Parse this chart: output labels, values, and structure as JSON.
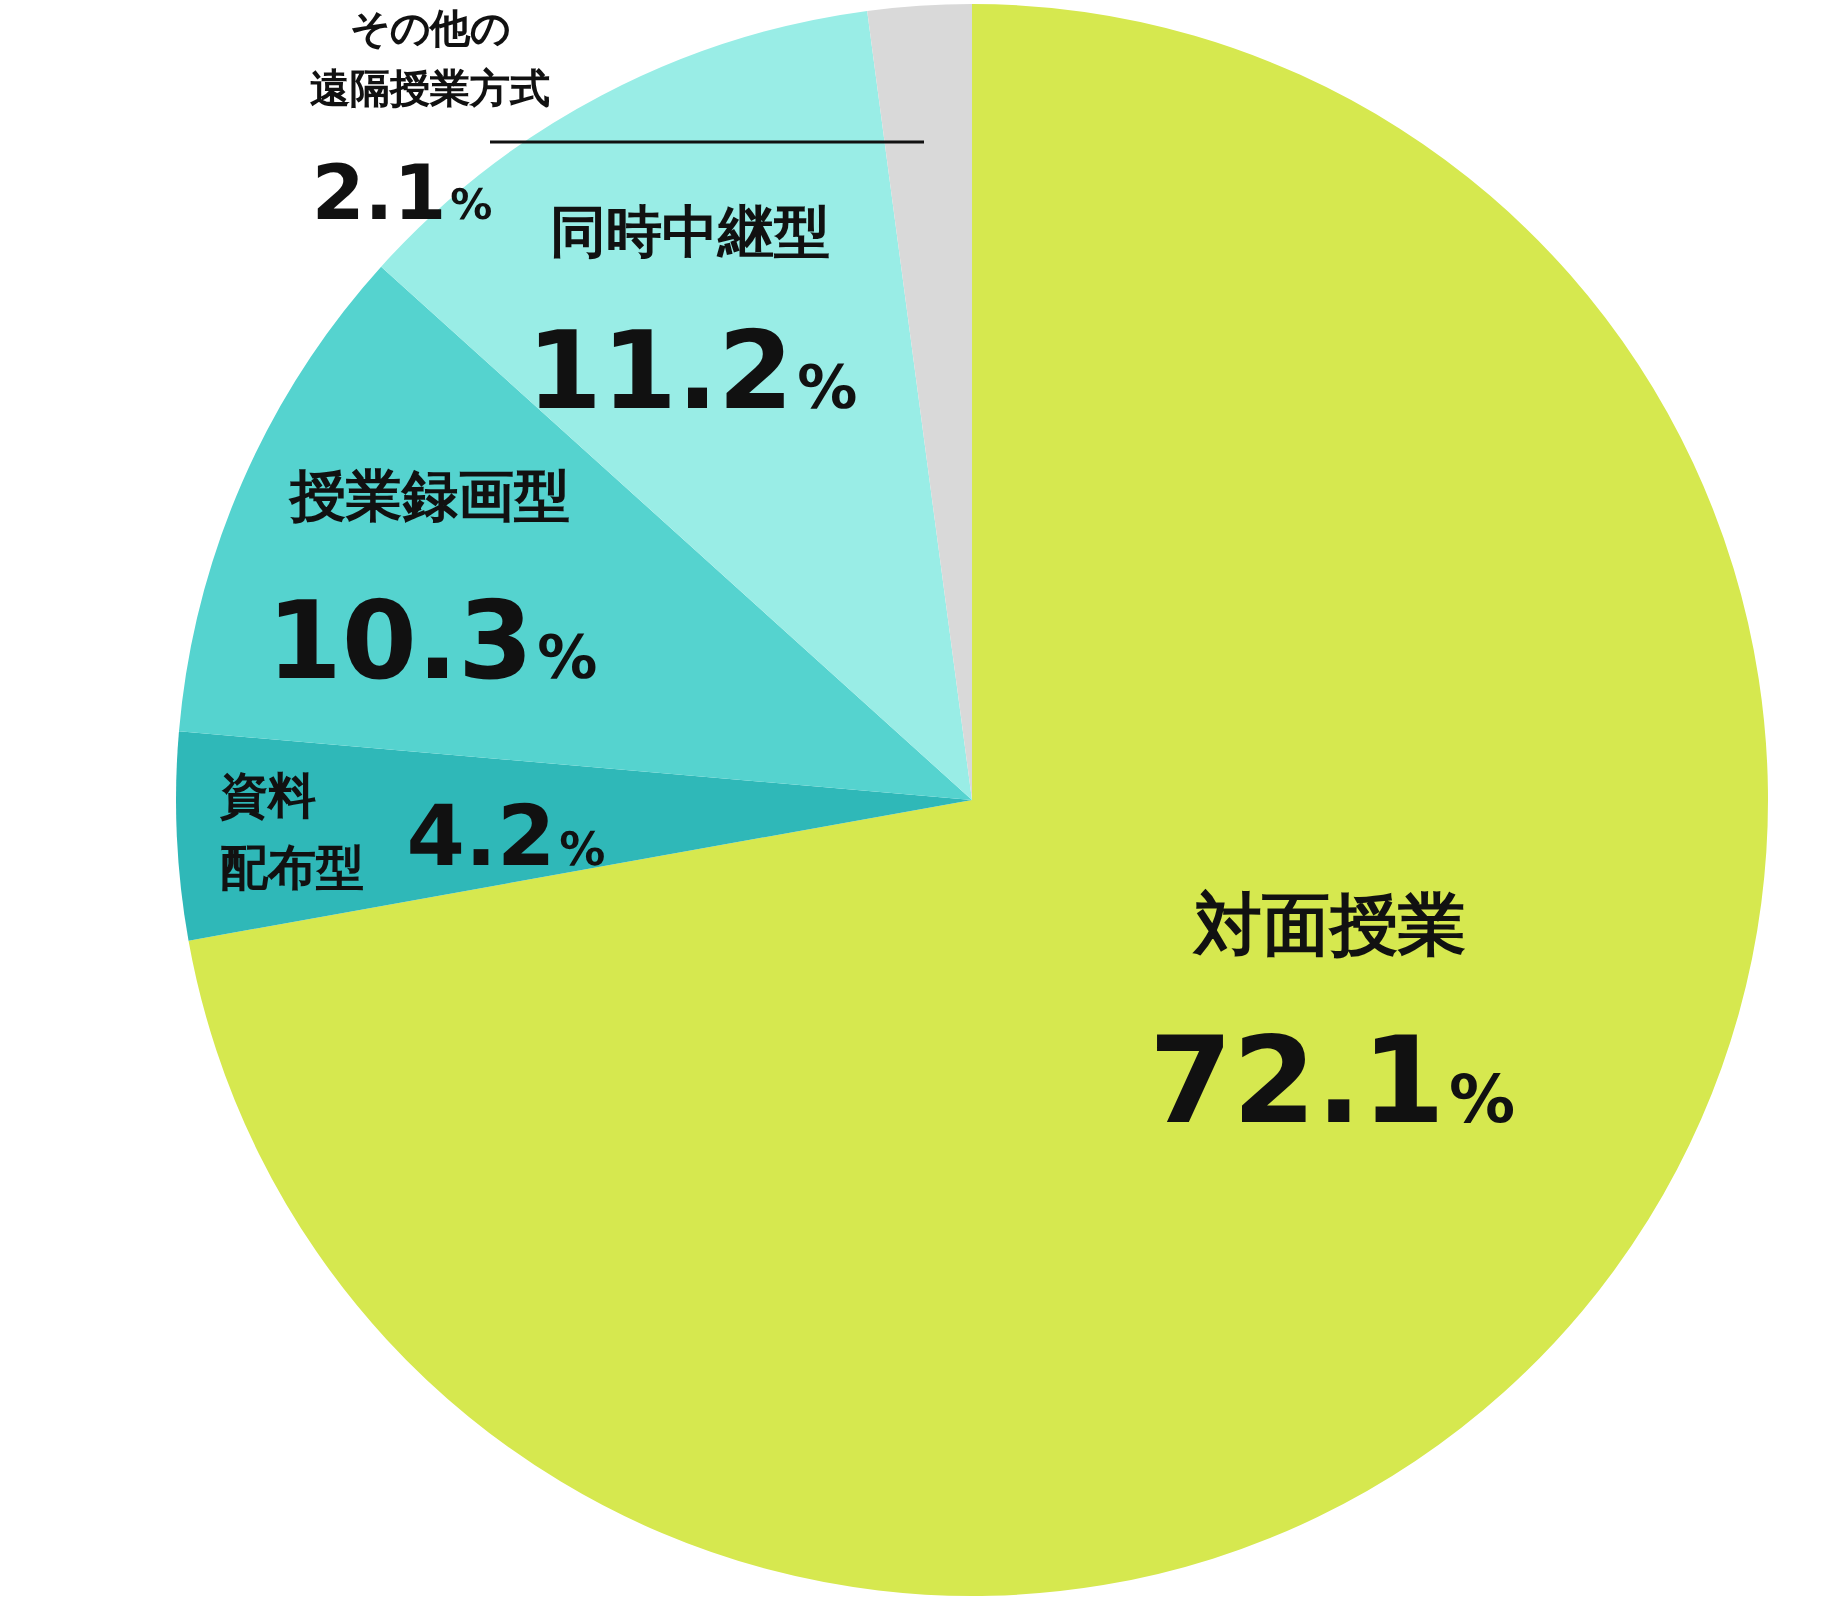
{
  "chart_data": {
    "type": "pie",
    "categories": [
      "対面授業",
      "資料配布型",
      "授業録画型",
      "同時中継型",
      "その他の遠隔授業方式"
    ],
    "values": [
      72.1,
      4.2,
      10.3,
      11.2,
      2.1
    ],
    "colors": [
      "#d6e84f",
      "#2fb8b8",
      "#55d3cf",
      "#99ede6",
      "#d9d9d9"
    ],
    "value_labels": [
      "72.1%",
      "4.2%",
      "10.3%",
      "11.2%",
      "2.1%"
    ],
    "legend": false
  }
}
